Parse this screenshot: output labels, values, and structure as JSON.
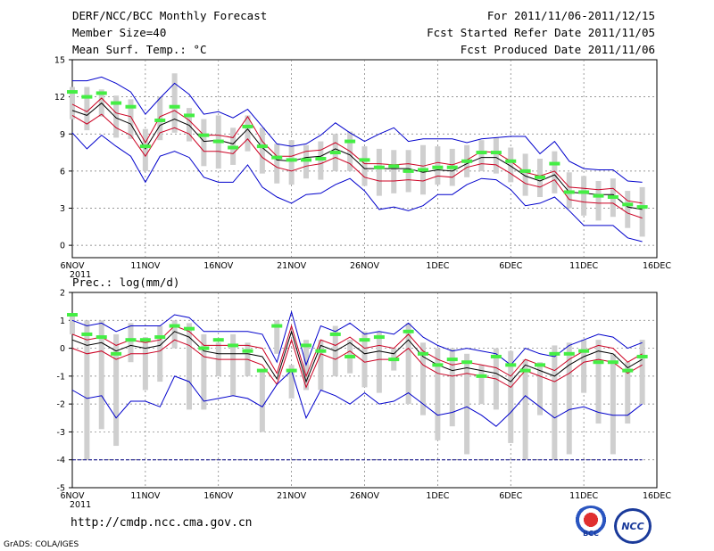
{
  "header": {
    "title": "DERF/NCC/BCC Monthly Forecast",
    "member_size": "Member Size=40",
    "period": "For 2011/11/06-2011/12/15",
    "refer_date": "Fcst Started Refer Date 2011/11/05",
    "produced_date": "Fcst Produced Date 2011/11/06"
  },
  "footer": {
    "url": "http://cmdp.ncc.cma.gov.cn",
    "grads_credit": "GrADS: COLA/IGES",
    "logo_bcc": "BCC",
    "logo_ncc": "NCC"
  },
  "colors": {
    "extreme": "#0000cc",
    "quartile": "#cc0022",
    "median": "#000000",
    "bar": "#cfcfcf",
    "marker": "#44ee44",
    "ref_line": "#000080"
  },
  "chart_data": [
    {
      "type": "line",
      "title": "Mean Surf. Temp.: °C",
      "xlabel": "",
      "ylabel": "",
      "x_tick_labels": [
        "6NOV",
        "11NOV",
        "16NOV",
        "21NOV",
        "26NOV",
        "1DEC",
        "6DEC",
        "11DEC",
        "16DEC"
      ],
      "x_year_label": "2011",
      "xlim": [
        1,
        41
      ],
      "ylim": [
        -1,
        15
      ],
      "y_ticks": [
        0,
        3,
        6,
        9,
        12,
        15
      ],
      "grid": true,
      "x": [
        1,
        2,
        3,
        4,
        5,
        6,
        7,
        8,
        9,
        10,
        11,
        12,
        13,
        14,
        15,
        16,
        17,
        18,
        19,
        20,
        21,
        22,
        23,
        24,
        25,
        26,
        27,
        28,
        29,
        30,
        31,
        32,
        33,
        34,
        35,
        36,
        37,
        38,
        39,
        40
      ],
      "series": [
        {
          "name": "max",
          "values": [
            13.3,
            13.3,
            13.6,
            13.1,
            12.4,
            10.6,
            11.9,
            13.1,
            12.2,
            10.6,
            10.8,
            10.3,
            11.0,
            9.6,
            8.2,
            8.0,
            8.2,
            8.9,
            9.9,
            9.1,
            8.4,
            9.0,
            9.5,
            8.4,
            8.6,
            8.6,
            8.6,
            8.3,
            8.6,
            8.7,
            8.8,
            8.8,
            7.4,
            8.4,
            6.8,
            6.2,
            6.1,
            6.1,
            5.2,
            5.1
          ]
        },
        {
          "name": "q75",
          "values": [
            11.4,
            10.8,
            11.9,
            10.7,
            10.4,
            8.3,
            10.4,
            10.9,
            10.1,
            8.9,
            8.9,
            8.7,
            10.4,
            8.4,
            7.2,
            7.2,
            7.6,
            7.7,
            8.3,
            7.6,
            6.6,
            6.6,
            6.5,
            6.6,
            6.4,
            6.7,
            6.5,
            6.9,
            7.6,
            7.5,
            6.8,
            5.9,
            5.6,
            6.0,
            4.7,
            4.6,
            4.5,
            4.6,
            3.6,
            3.4
          ]
        },
        {
          "name": "median",
          "values": [
            10.9,
            10.5,
            11.5,
            10.3,
            9.8,
            7.8,
            9.7,
            10.2,
            9.7,
            8.4,
            8.5,
            8.2,
            9.4,
            7.9,
            6.9,
            6.8,
            7.1,
            7.2,
            7.8,
            7.3,
            6.2,
            6.2,
            6.2,
            6.2,
            5.9,
            6.1,
            6.0,
            6.6,
            7.1,
            7.1,
            6.4,
            5.6,
            5.2,
            5.7,
            4.3,
            4.2,
            4.1,
            4.1,
            3.1,
            2.9
          ]
        },
        {
          "name": "q25",
          "values": [
            10.5,
            9.8,
            10.6,
            9.5,
            8.9,
            7.2,
            9.1,
            9.5,
            9.0,
            7.6,
            7.6,
            7.4,
            8.6,
            7.1,
            6.3,
            6.0,
            6.4,
            6.6,
            7.1,
            6.6,
            5.5,
            5.2,
            5.2,
            5.3,
            5.2,
            5.6,
            5.5,
            6.3,
            6.6,
            6.5,
            5.8,
            5.0,
            4.7,
            5.3,
            3.7,
            3.5,
            3.4,
            3.4,
            2.6,
            2.2
          ]
        },
        {
          "name": "min",
          "values": [
            9.1,
            7.8,
            8.9,
            8.0,
            7.2,
            5.1,
            7.2,
            7.6,
            7.1,
            5.5,
            5.1,
            5.1,
            6.5,
            4.7,
            3.9,
            3.4,
            4.1,
            4.2,
            4.9,
            5.4,
            4.4,
            2.9,
            3.1,
            2.8,
            3.2,
            4.1,
            4.1,
            4.9,
            5.4,
            5.3,
            4.5,
            3.2,
            3.4,
            3.9,
            2.8,
            1.6,
            1.6,
            1.6,
            0.6,
            0.3
          ]
        },
        {
          "name": "ensemble_mean",
          "values": [
            12.4,
            12.0,
            12.3,
            11.5,
            11.2,
            8.0,
            10.1,
            11.2,
            10.5,
            8.9,
            8.4,
            7.9,
            9.6,
            8.0,
            7.1,
            6.9,
            6.9,
            7.0,
            7.5,
            8.4,
            6.9,
            6.3,
            6.4,
            6.0,
            6.1,
            6.3,
            6.3,
            6.8,
            7.5,
            7.5,
            6.8,
            6.0,
            5.5,
            6.6,
            4.3,
            4.3,
            4.0,
            3.9,
            3.3,
            3.1
          ]
        }
      ],
      "bars": {
        "low": [
          10.2,
          9.3,
          10.4,
          8.7,
          8.6,
          6.0,
          8.5,
          9.1,
          8.4,
          6.4,
          6.2,
          6.5,
          7.6,
          5.8,
          5.0,
          4.9,
          5.4,
          5.3,
          6.0,
          6.0,
          4.8,
          4.0,
          4.2,
          4.3,
          4.1,
          4.9,
          4.8,
          5.5,
          6.0,
          5.8,
          5.1,
          4.0,
          3.9,
          4.2,
          3.0,
          2.4,
          2.0,
          2.3,
          1.4,
          0.7
        ],
        "high": [
          12.8,
          12.8,
          12.6,
          12.1,
          11.8,
          9.4,
          12.0,
          13.9,
          11.1,
          10.2,
          10.5,
          9.5,
          10.5,
          9.5,
          8.2,
          8.5,
          8.1,
          8.4,
          9.0,
          9.2,
          8.0,
          7.8,
          7.7,
          7.7,
          8.1,
          8.0,
          7.8,
          8.1,
          8.5,
          8.7,
          7.9,
          7.4,
          7.0,
          7.6,
          5.9,
          5.6,
          5.2,
          5.4,
          4.4,
          4.7
        ]
      }
    },
    {
      "type": "line",
      "title": "Prec.: log(mm/d)",
      "xlabel": "",
      "ylabel": "",
      "x_tick_labels": [
        "6NOV",
        "11NOV",
        "16NOV",
        "21NOV",
        "26NOV",
        "1DEC",
        "6DEC",
        "11DEC",
        "16DEC"
      ],
      "x_year_label": "2011",
      "xlim": [
        1,
        41
      ],
      "ylim": [
        -5,
        2
      ],
      "y_ticks": [
        -5,
        -4,
        -3,
        -2,
        -1,
        0,
        1,
        2
      ],
      "grid": true,
      "reference_line": -4,
      "x": [
        1,
        2,
        3,
        4,
        5,
        6,
        7,
        8,
        9,
        10,
        11,
        12,
        13,
        14,
        15,
        16,
        17,
        18,
        19,
        20,
        21,
        22,
        23,
        24,
        25,
        26,
        27,
        28,
        29,
        30,
        31,
        32,
        33,
        34,
        35,
        36,
        37,
        38,
        39,
        40
      ],
      "series": [
        {
          "name": "max",
          "values": [
            1.0,
            0.8,
            0.9,
            0.6,
            0.8,
            0.8,
            0.8,
            1.2,
            1.1,
            0.6,
            0.6,
            0.6,
            0.6,
            0.5,
            -0.5,
            1.3,
            -0.6,
            0.8,
            0.6,
            0.9,
            0.5,
            0.6,
            0.5,
            0.9,
            0.4,
            0.1,
            -0.1,
            0.0,
            -0.1,
            -0.2,
            -0.6,
            0.0,
            -0.2,
            -0.3,
            0.1,
            0.3,
            0.5,
            0.4,
            0.0,
            0.2
          ]
        },
        {
          "name": "q75",
          "values": [
            0.5,
            0.3,
            0.4,
            0.1,
            0.3,
            0.2,
            0.3,
            0.8,
            0.6,
            0.1,
            0.1,
            0.1,
            0.1,
            0.0,
            -0.9,
            0.8,
            -1.0,
            0.3,
            0.1,
            0.4,
            0.0,
            0.1,
            0.0,
            0.5,
            -0.1,
            -0.4,
            -0.6,
            -0.5,
            -0.6,
            -0.7,
            -1.0,
            -0.4,
            -0.6,
            -0.8,
            -0.4,
            -0.1,
            0.1,
            0.0,
            -0.5,
            -0.2
          ]
        },
        {
          "name": "median",
          "values": [
            0.3,
            0.1,
            0.2,
            -0.1,
            0.1,
            0.0,
            0.1,
            0.6,
            0.4,
            -0.1,
            -0.2,
            -0.2,
            -0.2,
            -0.3,
            -1.1,
            0.6,
            -1.2,
            0.1,
            -0.1,
            0.2,
            -0.2,
            -0.1,
            -0.2,
            0.3,
            -0.3,
            -0.6,
            -0.8,
            -0.7,
            -0.8,
            -0.9,
            -1.2,
            -0.6,
            -0.8,
            -1.0,
            -0.6,
            -0.3,
            -0.1,
            -0.2,
            -0.7,
            -0.4
          ]
        },
        {
          "name": "q25",
          "values": [
            0.0,
            -0.2,
            -0.1,
            -0.4,
            -0.2,
            -0.2,
            -0.1,
            0.3,
            0.1,
            -0.3,
            -0.4,
            -0.4,
            -0.4,
            -0.6,
            -1.3,
            0.3,
            -1.4,
            -0.2,
            -0.4,
            -0.1,
            -0.5,
            -0.4,
            -0.4,
            0.0,
            -0.6,
            -0.9,
            -1.0,
            -0.9,
            -1.0,
            -1.1,
            -1.4,
            -0.8,
            -1.0,
            -1.2,
            -0.9,
            -0.5,
            -0.4,
            -0.5,
            -0.9,
            -0.6
          ]
        },
        {
          "name": "min",
          "values": [
            -1.5,
            -1.8,
            -1.7,
            -2.5,
            -1.9,
            -1.9,
            -2.1,
            -1.0,
            -1.2,
            -1.9,
            -1.8,
            -1.7,
            -1.8,
            -2.1,
            -1.3,
            -0.8,
            -2.5,
            -1.5,
            -1.7,
            -2.0,
            -1.6,
            -2.0,
            -1.9,
            -1.6,
            -2.0,
            -2.4,
            -2.3,
            -2.1,
            -2.4,
            -2.8,
            -2.3,
            -1.7,
            -2.1,
            -2.5,
            -2.2,
            -2.1,
            -2.3,
            -2.4,
            -2.4,
            -2.0
          ]
        },
        {
          "name": "ensemble_mean",
          "values": [
            1.2,
            0.5,
            0.4,
            -0.2,
            0.3,
            0.3,
            0.4,
            0.8,
            0.7,
            0.0,
            0.3,
            0.1,
            -0.1,
            -0.8,
            0.8,
            -0.8,
            0.1,
            -0.1,
            0.5,
            -0.3,
            0.3,
            0.4,
            -0.4,
            0.6,
            -0.2,
            -0.6,
            -0.4,
            -0.5,
            -1.0,
            -0.3,
            -0.6,
            -0.8,
            -0.6,
            -0.2,
            -0.2,
            -0.1,
            -0.5,
            -0.5,
            -0.8,
            -0.3
          ]
        }
      ],
      "bars": {
        "low": [
          0.5,
          -4.0,
          -2.9,
          -3.5,
          -0.5,
          -1.5,
          -1.2,
          0.0,
          -2.2,
          -2.2,
          -1.0,
          -1.7,
          -1.0,
          -3.0,
          -0.2,
          -1.8,
          -1.5,
          -1.5,
          -1.0,
          -0.9,
          -1.4,
          -1.6,
          -0.8,
          -2.0,
          -2.4,
          -3.3,
          -2.8,
          -3.8,
          -2.0,
          -2.2,
          -3.4,
          -4.0,
          -2.4,
          -4.0,
          -3.8,
          -1.6,
          -2.7,
          -3.8,
          -2.7,
          -2.0
        ],
        "high": [
          1.2,
          1.0,
          1.0,
          0.5,
          0.9,
          0.4,
          0.8,
          1.0,
          0.9,
          0.5,
          0.2,
          0.5,
          0.2,
          -0.8,
          1.0,
          -0.6,
          0.3,
          0.3,
          0.8,
          0.3,
          0.6,
          0.6,
          0.0,
          0.9,
          0.2,
          0.0,
          0.0,
          -0.2,
          -0.6,
          0.0,
          -0.1,
          -0.4,
          -0.5,
          0.1,
          0.2,
          0.3,
          0.3,
          -0.2,
          -0.5,
          0.3
        ]
      }
    }
  ]
}
